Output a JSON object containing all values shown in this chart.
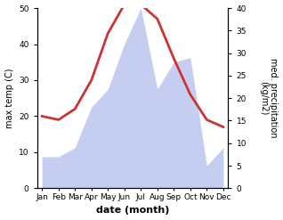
{
  "months": [
    "Jan",
    "Feb",
    "Mar",
    "Apr",
    "May",
    "Jun",
    "Jul",
    "Aug",
    "Sep",
    "Oct",
    "Nov",
    "Dec"
  ],
  "temperature": [
    20,
    19,
    22,
    30,
    43,
    51,
    51,
    47,
    36,
    26,
    19,
    17
  ],
  "precipitation": [
    7,
    7,
    9,
    18,
    22,
    32,
    40,
    22,
    28,
    29,
    5,
    9
  ],
  "temp_color": "#cc3333",
  "precip_fill_color": "#c5cef0",
  "ylabel_left": "max temp (C)",
  "ylabel_right": "med. precipitation\n(kg/m2)",
  "xlabel": "date (month)",
  "ylim_left": [
    0,
    50
  ],
  "ylim_right": [
    0,
    40
  ],
  "background_color": "#ffffff",
  "line_width": 2.0,
  "title_fontsize": 7,
  "tick_fontsize": 6.5,
  "label_fontsize": 7
}
